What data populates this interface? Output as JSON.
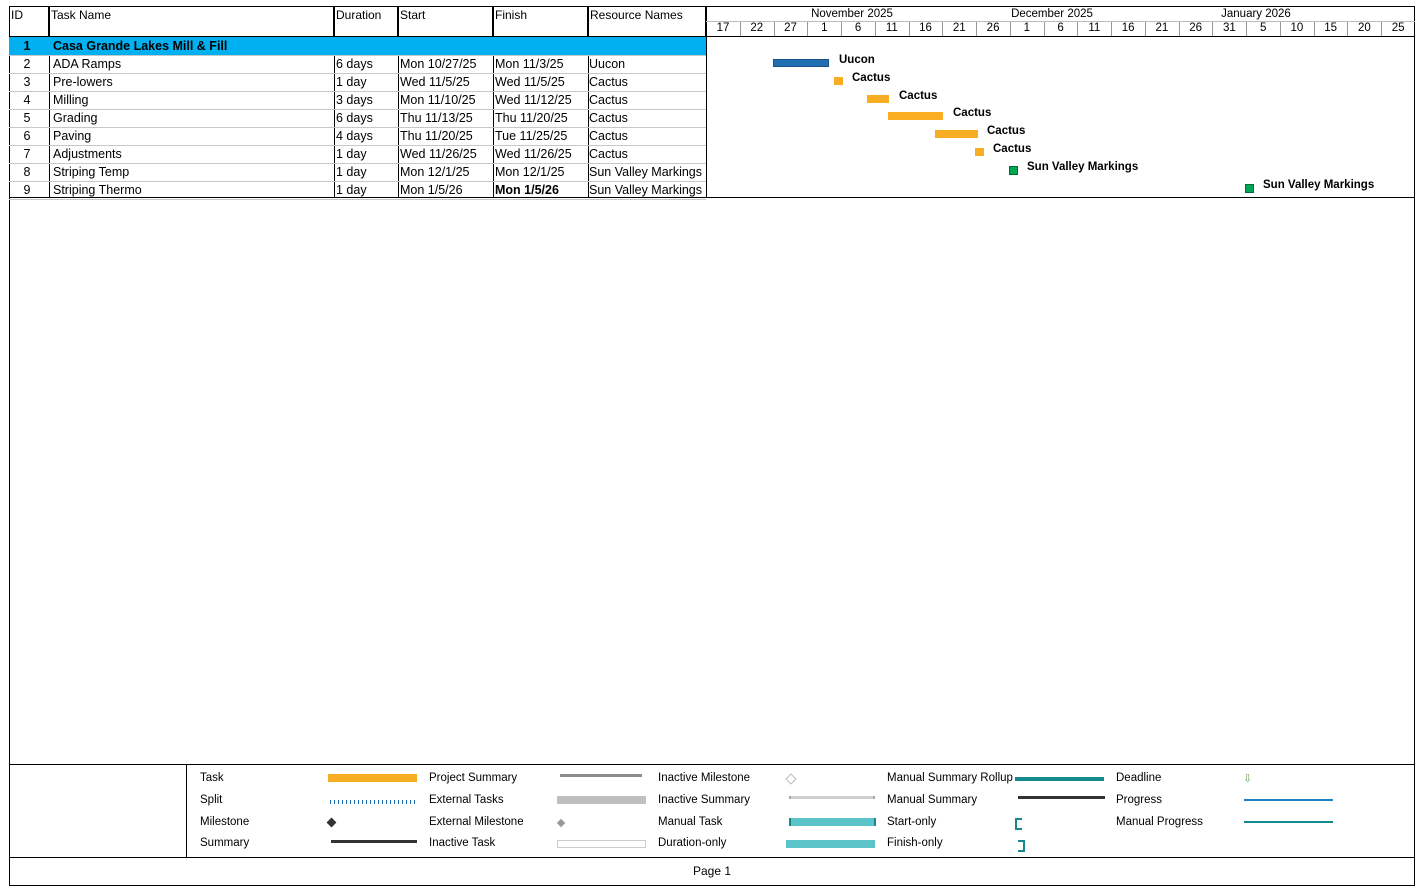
{
  "columns": {
    "id": "ID",
    "task_name": "Task Name",
    "duration": "Duration",
    "start": "Start",
    "finish": "Finish",
    "resources": "Resource Names"
  },
  "tasks": [
    {
      "id": "1",
      "name": "Casa Grande Lakes Mill & Fill",
      "duration": "",
      "start": "",
      "finish": "",
      "resource": ""
    },
    {
      "id": "2",
      "name": "ADA Ramps",
      "duration": "6 days",
      "start": "Mon 10/27/25",
      "finish": "Mon 11/3/25",
      "resource": "Uucon"
    },
    {
      "id": "3",
      "name": "Pre-lowers",
      "duration": "1 day",
      "start": "Wed 11/5/25",
      "finish": "Wed 11/5/25",
      "resource": "Cactus"
    },
    {
      "id": "4",
      "name": "Milling",
      "duration": "3 days",
      "start": "Mon 11/10/25",
      "finish": "Wed 11/12/25",
      "resource": "Cactus"
    },
    {
      "id": "5",
      "name": "Grading",
      "duration": "6 days",
      "start": "Thu 11/13/25",
      "finish": "Thu 11/20/25",
      "resource": "Cactus"
    },
    {
      "id": "6",
      "name": "Paving",
      "duration": "4 days",
      "start": "Thu 11/20/25",
      "finish": "Tue 11/25/25",
      "resource": "Cactus"
    },
    {
      "id": "7",
      "name": "Adjustments",
      "duration": "1 day",
      "start": "Wed 11/26/25",
      "finish": "Wed 11/26/25",
      "resource": "Cactus"
    },
    {
      "id": "8",
      "name": "Striping Temp",
      "duration": "1 day",
      "start": "Mon 12/1/25",
      "finish": "Mon 12/1/25",
      "resource": "Sun Valley Markings"
    },
    {
      "id": "9",
      "name": "Striping Thermo",
      "duration": "1 day",
      "start": "Mon 1/5/26",
      "finish": "Mon 1/5/26",
      "resource": "Sun Valley Markings"
    }
  ],
  "timescale": {
    "months": [
      "November 2025",
      "December 2025",
      "January 2026"
    ],
    "days": [
      "17",
      "22",
      "27",
      "1",
      "6",
      "11",
      "16",
      "21",
      "26",
      "1",
      "6",
      "11",
      "16",
      "21",
      "26",
      "31",
      "5",
      "10",
      "15",
      "20",
      "25"
    ]
  },
  "gantt_labels": [
    "Uucon",
    "Cactus",
    "Cactus",
    "Cactus",
    "Cactus",
    "Cactus",
    "Sun Valley Markings",
    "Sun Valley Markings"
  ],
  "legend": {
    "col1": [
      "Task",
      "Split",
      "Milestone",
      "Summary"
    ],
    "col2": [
      "Project Summary",
      "External Tasks",
      "External Milestone",
      "Inactive Task"
    ],
    "col3": [
      "Inactive Milestone",
      "Inactive Summary",
      "Manual Task",
      "Duration-only"
    ],
    "col4": [
      "Manual Summary Rollup",
      "Manual Summary",
      "Start-only",
      "Finish-only"
    ],
    "col5": [
      "Deadline",
      "Progress",
      "Manual Progress"
    ]
  },
  "footer": {
    "page_label": "Page 1"
  },
  "colors": {
    "task_bar": "#f9ad23",
    "critical_bar": "#1f6fb2",
    "milestone": "#00a651",
    "summary_highlight": "#00b0f0"
  }
}
